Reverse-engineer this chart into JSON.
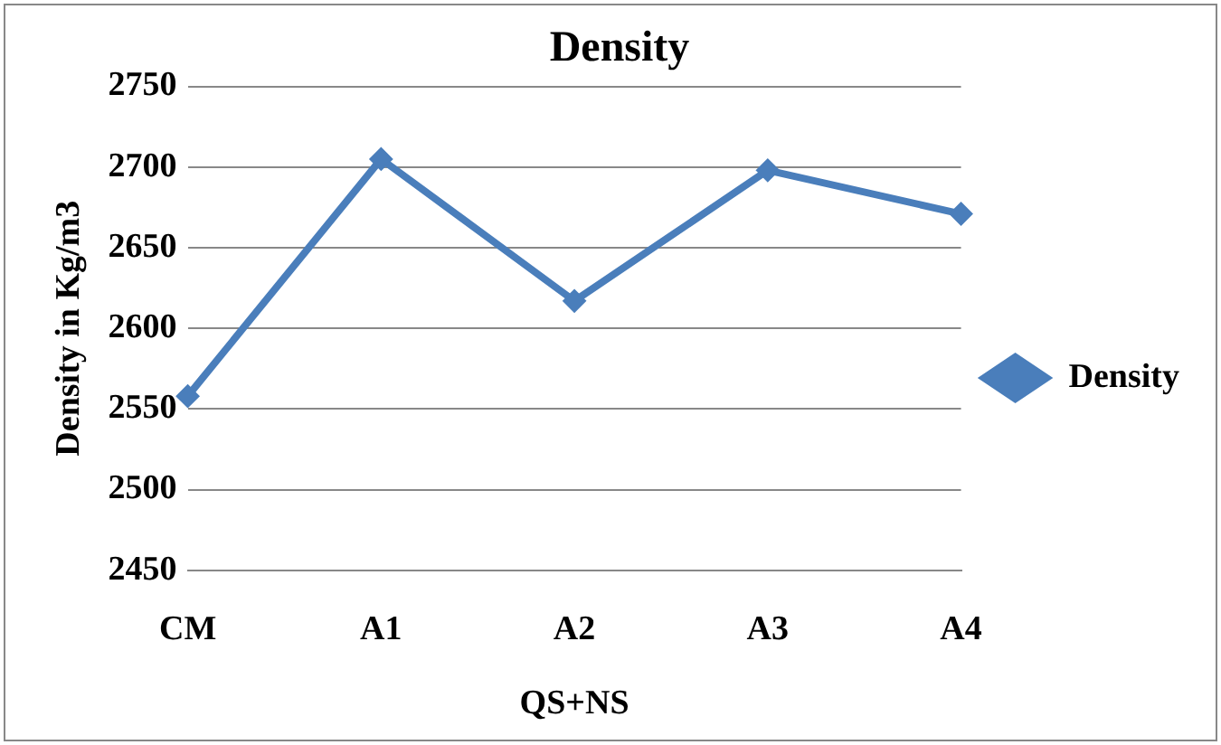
{
  "chart_data": {
    "type": "line",
    "title": "Density",
    "xlabel": "QS+NS",
    "ylabel": "Density in Kg/m3",
    "categories": [
      "CM",
      "A1",
      "A2",
      "A3",
      "A4"
    ],
    "series": [
      {
        "name": "Density",
        "color": "#4a7ebb",
        "values": [
          2558,
          2705,
          2617,
          2698,
          2671
        ]
      }
    ],
    "ylim": [
      2450,
      2750
    ],
    "yticks": [
      2450,
      2500,
      2550,
      2600,
      2650,
      2700,
      2750
    ],
    "grid": "y",
    "legend": "right",
    "marker": "diamond",
    "line_style": "solid"
  }
}
